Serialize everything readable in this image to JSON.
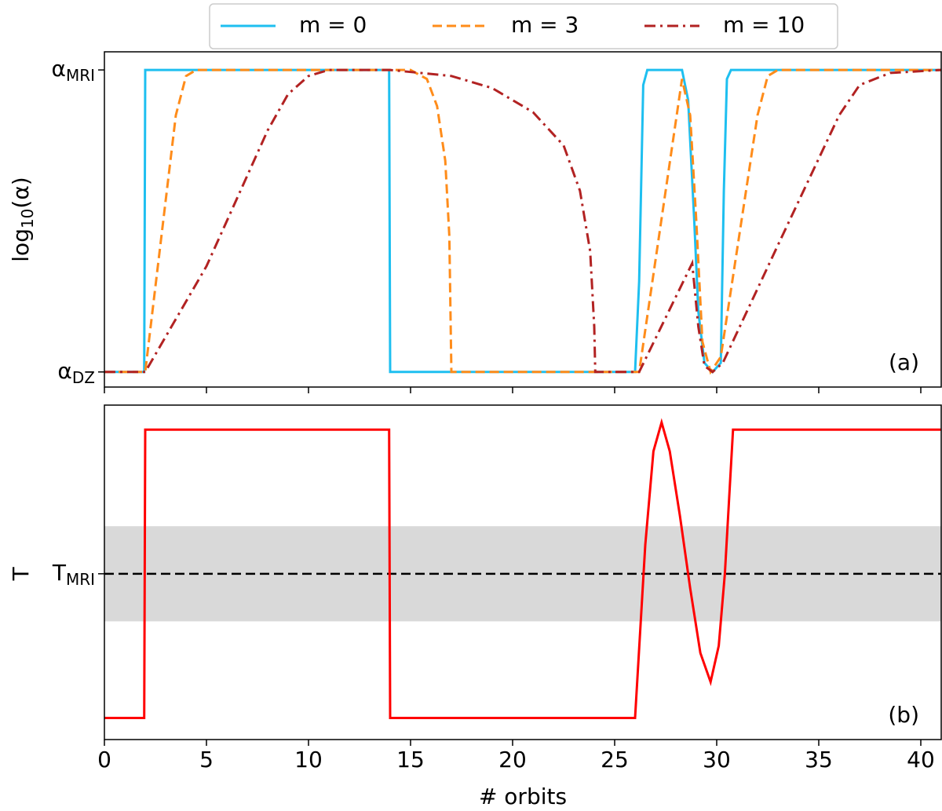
{
  "chart_data": [
    {
      "type": "line",
      "ylabel": "log10(α)",
      "annotation": "(a)",
      "xlim": [
        0,
        41
      ],
      "xticks": [
        0,
        5,
        10,
        15,
        20,
        25,
        30,
        35,
        40
      ],
      "ylim": [
        -0.05,
        1.06
      ],
      "yticks": [
        {
          "value": 0,
          "label": "αDZ"
        },
        {
          "value": 1,
          "label": "αMRI"
        }
      ],
      "legend": "upper center",
      "series": [
        {
          "name": "m = 0",
          "color": "#1ebff0",
          "dash": "solid",
          "x": [
            0,
            1.95,
            2,
            13.95,
            14,
            26.0,
            26.2,
            26.4,
            26.6,
            28.3,
            28.6,
            28.9,
            29.1,
            29.4,
            29.8,
            30.2,
            30.35,
            30.5,
            30.7,
            41
          ],
          "values": [
            0,
            0,
            1,
            1,
            0,
            0,
            0.3,
            0.95,
            1,
            1,
            0.9,
            0.5,
            0.2,
            0.03,
            0,
            0.03,
            0.6,
            0.97,
            1,
            1
          ]
        },
        {
          "name": "m = 3",
          "color": "#ff8c1a",
          "dash": "dashed",
          "x": [
            0,
            2,
            3.5,
            4,
            4.5,
            15,
            15.8,
            16.3,
            16.7,
            16.9,
            17,
            26.2,
            28.3,
            28.7,
            29,
            29.3,
            29.7,
            30.2,
            32,
            32.5,
            33,
            41
          ],
          "values": [
            0,
            0,
            0.85,
            0.98,
            1,
            1,
            0.97,
            0.88,
            0.7,
            0.45,
            0,
            0,
            0.97,
            0.85,
            0.5,
            0.1,
            0,
            0.05,
            0.85,
            0.98,
            1,
            1
          ]
        },
        {
          "name": "m = 10",
          "color": "#b22222",
          "dash": "dashdot",
          "x": [
            0,
            2,
            5,
            8,
            9,
            10,
            11,
            14,
            17,
            19,
            21,
            22.5,
            23.3,
            23.8,
            24,
            24.05,
            26.2,
            28.8,
            29.1,
            29.4,
            29.8,
            30.3,
            33,
            36,
            37,
            38.5,
            41
          ],
          "values": [
            0,
            0,
            0.35,
            0.8,
            0.92,
            0.98,
            1,
            1,
            0.98,
            0.94,
            0.86,
            0.75,
            0.6,
            0.4,
            0.15,
            0,
            0,
            0.36,
            0.15,
            0.02,
            0,
            0.03,
            0.42,
            0.85,
            0.95,
            0.99,
            1
          ]
        }
      ]
    },
    {
      "type": "line",
      "ylabel": "T",
      "xlabel": "# orbits",
      "annotation": "(b)",
      "xlim": [
        0,
        41
      ],
      "xticks": [
        0,
        5,
        10,
        15,
        20,
        25,
        30,
        35,
        40
      ],
      "ylim": [
        -1.15,
        1.17
      ],
      "yticks": [
        {
          "value": 0,
          "label": "TMRI"
        }
      ],
      "band": [
        -0.33,
        0.33
      ],
      "band_color": "#d9d9d9",
      "series": [
        {
          "color": "#ff0000",
          "dash": "solid",
          "x": [
            0,
            1.95,
            2,
            13.95,
            14,
            26,
            26.5,
            26.9,
            27.3,
            27.7,
            28.2,
            28.7,
            29.2,
            29.7,
            30.1,
            30.4,
            30.8,
            41
          ],
          "values": [
            -1,
            -1,
            1,
            1,
            -1,
            -1,
            0.2,
            0.85,
            1.05,
            0.85,
            0.4,
            -0.1,
            -0.55,
            -0.75,
            -0.5,
            0,
            1,
            1
          ]
        }
      ]
    }
  ]
}
